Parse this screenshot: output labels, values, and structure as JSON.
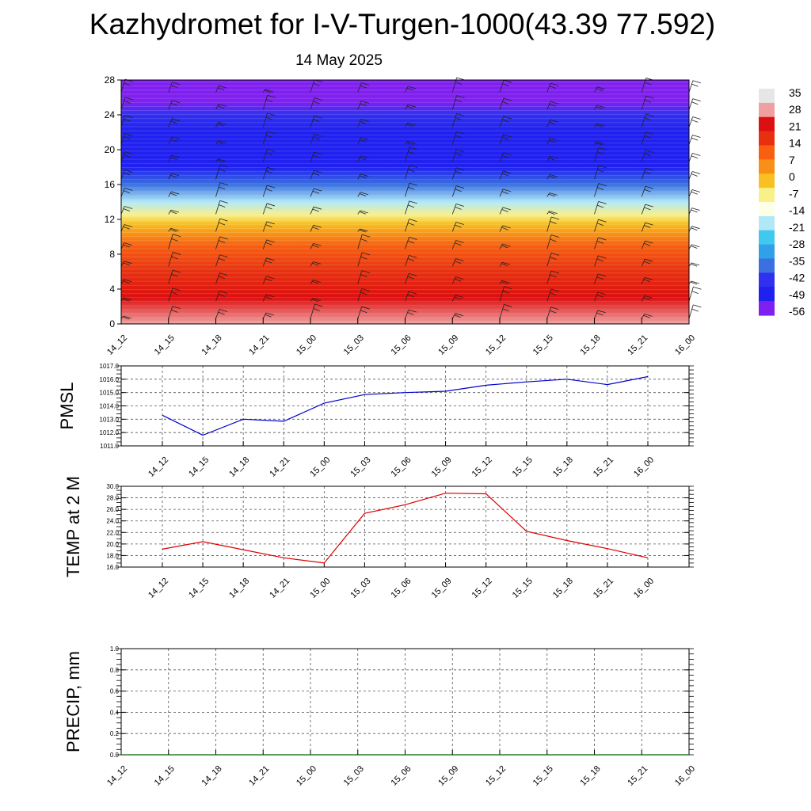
{
  "title": "Kazhydromet for I-V-Turgen-1000(43.39 77.592)",
  "subtitle": "14 May 2025",
  "times": [
    "14_12",
    "14_15",
    "14_18",
    "14_21",
    "15_00",
    "15_03",
    "15_06",
    "15_09",
    "15_12",
    "15_15",
    "15_18",
    "15_21",
    "16_00"
  ],
  "chart_data": [
    {
      "type": "heatmap",
      "title": "",
      "ylim": [
        0,
        28
      ],
      "yticks": [
        "0",
        "4",
        "8",
        "12",
        "16",
        "20",
        "24",
        "28"
      ],
      "colorbar_labels": [
        "35",
        "28",
        "21",
        "14",
        "7",
        "0",
        "-7",
        "-14",
        "-21",
        "-28",
        "-35",
        "-42",
        "-49",
        "-56"
      ],
      "colorscale": [
        "#e6e6e6",
        "#f0a0a0",
        "#dc1010",
        "#e83010",
        "#f86010",
        "#f89018",
        "#f8c020",
        "#f8f088",
        "#ffffe8",
        "#b0e8f8",
        "#40c8f0",
        "#30a0e8",
        "#3a70e0",
        "#3030f0",
        "#2020f0",
        "#8020f0"
      ],
      "profile": [
        {
          "level": 0,
          "value": 30
        },
        {
          "level": 3,
          "value": 26
        },
        {
          "level": 6,
          "value": 18
        },
        {
          "level": 9,
          "value": 9
        },
        {
          "level": 11.5,
          "value": 0
        },
        {
          "level": 12.5,
          "value": -10
        },
        {
          "level": 14,
          "value": -25
        },
        {
          "level": 16,
          "value": -40
        },
        {
          "level": 18,
          "value": -55
        },
        {
          "level": 20,
          "value": -58
        },
        {
          "level": 22,
          "value": -55
        },
        {
          "level": 24,
          "value": -48
        },
        {
          "level": 25.5,
          "value": -60
        },
        {
          "level": 28,
          "value": -62
        }
      ]
    },
    {
      "type": "line",
      "ylabel": "PMSL",
      "ylim": [
        1011.0,
        1017.0
      ],
      "yticks": [
        "1011.0",
        "1012.0",
        "1013.0",
        "1014.0",
        "1015.0",
        "1016.0",
        "1017.0"
      ],
      "grid": true,
      "series": [
        {
          "values": [
            1013.3,
            1011.8,
            1013.0,
            1012.85,
            1014.2,
            1014.85,
            1015.0,
            1015.1,
            1015.55,
            1015.8,
            1016.0,
            1015.6,
            1016.2
          ]
        }
      ],
      "color": "#0000cc"
    },
    {
      "type": "line",
      "ylabel": "TEMP at 2 M",
      "ylim": [
        16.0,
        30.0
      ],
      "yticks": [
        "16.0",
        "18.0",
        "20.0",
        "22.0",
        "24.0",
        "26.0",
        "28.0",
        "30.0"
      ],
      "grid": true,
      "series": [
        {
          "values": [
            19.1,
            20.4,
            19.0,
            17.6,
            16.7,
            25.3,
            26.8,
            28.8,
            28.7,
            22.2,
            20.6,
            19.2,
            17.6
          ]
        }
      ],
      "color": "#dd0000"
    },
    {
      "type": "line",
      "ylabel": "PRECIP, mm",
      "ylim": [
        0.0,
        1.0
      ],
      "yticks": [
        "0.0",
        "0.2",
        "0.4",
        "0.6",
        "0.8",
        "1.0"
      ],
      "grid": true,
      "series": [
        {
          "values": [
            0,
            0,
            0,
            0,
            0,
            0,
            0,
            0,
            0,
            0,
            0,
            0,
            0
          ]
        }
      ],
      "color": "#006400"
    }
  ]
}
